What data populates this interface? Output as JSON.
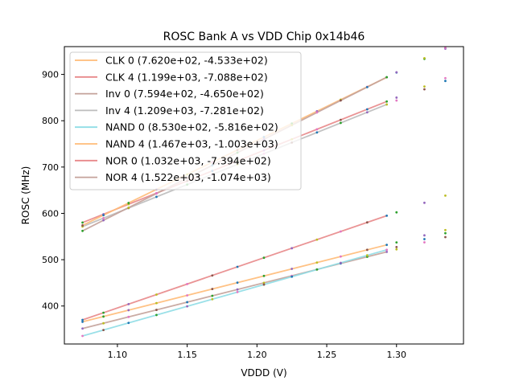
{
  "chart_data": {
    "type": "line",
    "title": "ROSC Bank A vs VDD Chip 0x14b46",
    "xlabel": "VDDD (V)",
    "ylabel": "ROSC (MHz)",
    "xlim": [
      1.062,
      1.348
    ],
    "ylim": [
      318,
      960
    ],
    "xticks": [
      1.1,
      1.15,
      1.2,
      1.25,
      1.3
    ],
    "xtick_labels": [
      "1.10",
      "1.15",
      "1.20",
      "1.25",
      "1.30"
    ],
    "yticks": [
      400,
      500,
      600,
      700,
      800,
      900
    ],
    "ytick_labels": [
      "400",
      "500",
      "600",
      "700",
      "800",
      "900"
    ],
    "legend_position": "top-left",
    "fit_range": [
      1.075,
      1.293
    ],
    "x_points": [
      1.075,
      1.09,
      1.108,
      1.128,
      1.15,
      1.168,
      1.186,
      1.205,
      1.225,
      1.243,
      1.26,
      1.279,
      1.293,
      1.3,
      1.32,
      1.335
    ],
    "series": [
      {
        "name": "CLK 0 (7.620e+02, -4.533e+02)",
        "slope": 762.0,
        "intercept": -453.3,
        "color": "#ffbb78"
      },
      {
        "name": "CLK 4 (1.199e+03, -7.088e+02)",
        "slope": 1199.0,
        "intercept": -708.8,
        "color": "#e8888a"
      },
      {
        "name": "Inv 0 (7.594e+02, -4.650e+02)",
        "slope": 759.4,
        "intercept": -465.0,
        "color": "#c4a29a"
      },
      {
        "name": "Inv 4 (1.209e+03, -7.281e+02)",
        "slope": 1209.0,
        "intercept": -728.1,
        "color": "#bdbdbd"
      },
      {
        "name": "NAND 0 (8.530e+02, -5.816e+02)",
        "slope": 853.0,
        "intercept": -581.6,
        "color": "#8fdde6"
      },
      {
        "name": "NAND 4 (1.467e+03, -1.003e+03)",
        "slope": 1467.0,
        "intercept": -1003.0,
        "color": "#ffbb78"
      },
      {
        "name": "NOR 0 (1.032e+03, -7.394e+02)",
        "slope": 1032.0,
        "intercept": -739.4,
        "color": "#e8888a"
      },
      {
        "name": "NOR 4 (1.522e+03, -1.074e+03)",
        "slope": 1522.0,
        "intercept": -1074.0,
        "color": "#c4a29a"
      }
    ],
    "marker_colors": [
      "#1f77b4",
      "#2ca02c",
      "#9467bd",
      "#bcbd22",
      "#e377c2",
      "#8c564b"
    ]
  }
}
